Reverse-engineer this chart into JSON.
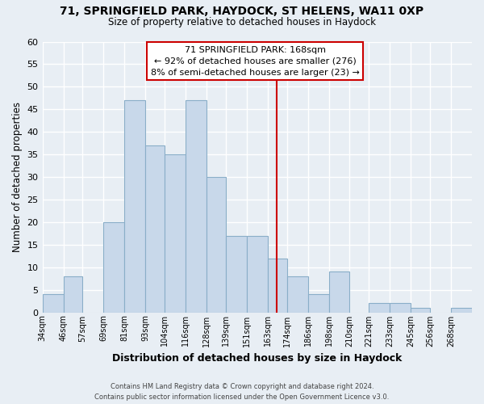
{
  "title1": "71, SPRINGFIELD PARK, HAYDOCK, ST HELENS, WA11 0XP",
  "title2": "Size of property relative to detached houses in Haydock",
  "xlabel": "Distribution of detached houses by size in Haydock",
  "ylabel": "Number of detached properties",
  "footer1": "Contains HM Land Registry data © Crown copyright and database right 2024.",
  "footer2": "Contains public sector information licensed under the Open Government Licence v3.0.",
  "bin_labels": [
    "34sqm",
    "46sqm",
    "57sqm",
    "69sqm",
    "81sqm",
    "93sqm",
    "104sqm",
    "116sqm",
    "128sqm",
    "139sqm",
    "151sqm",
    "163sqm",
    "174sqm",
    "186sqm",
    "198sqm",
    "210sqm",
    "221sqm",
    "233sqm",
    "245sqm",
    "256sqm",
    "268sqm"
  ],
  "bin_edges": [
    34,
    46,
    57,
    69,
    81,
    93,
    104,
    116,
    128,
    139,
    151,
    163,
    174,
    186,
    198,
    210,
    221,
    233,
    245,
    256,
    268,
    280
  ],
  "counts": [
    4,
    8,
    0,
    20,
    47,
    37,
    35,
    47,
    30,
    17,
    17,
    12,
    8,
    4,
    9,
    0,
    2,
    2,
    1,
    0,
    1
  ],
  "bar_color": "#c8d8ea",
  "bar_edge_color": "#8aaec8",
  "vline_x": 168,
  "vline_color": "#cc0000",
  "annotation_title": "71 SPRINGFIELD PARK: 168sqm",
  "annotation_line1": "← 92% of detached houses are smaller (276)",
  "annotation_line2": "8% of semi-detached houses are larger (23) →",
  "annotation_box_edge": "#cc0000",
  "ylim": [
    0,
    60
  ],
  "yticks": [
    0,
    5,
    10,
    15,
    20,
    25,
    30,
    35,
    40,
    45,
    50,
    55,
    60
  ],
  "bg_color": "#e8eef4",
  "plot_bg_color": "#e8eef4",
  "grid_color": "#ffffff"
}
